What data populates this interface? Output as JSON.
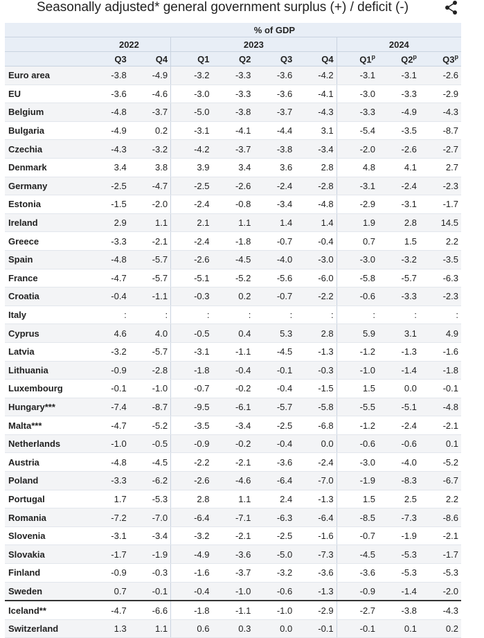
{
  "title": "Seasonally adjusted* general government surplus (+) / deficit (-)",
  "unit_label": "% of GDP",
  "years": [
    {
      "label": "2022",
      "span": 2
    },
    {
      "label": "2023",
      "span": 4
    },
    {
      "label": "2024",
      "span": 3
    }
  ],
  "quarters": [
    "Q3",
    "Q4",
    "Q1",
    "Q2",
    "Q3",
    "Q4",
    "Q1",
    "Q2",
    "Q3"
  ],
  "provisional_marker": "p",
  "icons": {
    "share": "share-icon"
  },
  "chart_data": {
    "type": "table",
    "title": "Seasonally adjusted* general government surplus (+) / deficit (-)",
    "unit": "% of GDP",
    "columns": [
      "2022 Q3",
      "2022 Q4",
      "2023 Q1",
      "2023 Q2",
      "2023 Q3",
      "2023 Q4",
      "2024 Q1p",
      "2024 Q2p",
      "2024 Q3p"
    ],
    "rows": [
      {
        "name": "Euro area",
        "values": [
          "-3.8",
          "-4.9",
          "-3.2",
          "-3.3",
          "-3.6",
          "-4.2",
          "-3.1",
          "-3.1",
          "-2.6"
        ]
      },
      {
        "name": "EU",
        "values": [
          "-3.6",
          "-4.6",
          "-3.0",
          "-3.3",
          "-3.6",
          "-4.1",
          "-3.0",
          "-3.3",
          "-2.9"
        ]
      },
      {
        "name": "Belgium",
        "values": [
          "-4.8",
          "-3.7",
          "-5.0",
          "-3.8",
          "-3.7",
          "-4.3",
          "-3.3",
          "-4.9",
          "-4.3"
        ]
      },
      {
        "name": "Bulgaria",
        "values": [
          "-4.9",
          "0.2",
          "-3.1",
          "-4.1",
          "-4.4",
          "3.1",
          "-5.4",
          "-3.5",
          "-8.7"
        ]
      },
      {
        "name": "Czechia",
        "values": [
          "-4.3",
          "-3.2",
          "-4.2",
          "-3.7",
          "-3.8",
          "-3.4",
          "-2.0",
          "-2.6",
          "-2.7"
        ]
      },
      {
        "name": "Denmark",
        "values": [
          "3.4",
          "3.8",
          "3.9",
          "3.4",
          "3.6",
          "2.8",
          "4.8",
          "4.1",
          "2.7"
        ]
      },
      {
        "name": "Germany",
        "values": [
          "-2.5",
          "-4.7",
          "-2.5",
          "-2.6",
          "-2.4",
          "-2.8",
          "-3.1",
          "-2.4",
          "-2.3"
        ]
      },
      {
        "name": "Estonia",
        "values": [
          "-1.5",
          "-2.0",
          "-2.4",
          "-0.8",
          "-3.4",
          "-4.8",
          "-2.9",
          "-3.1",
          "-1.7"
        ]
      },
      {
        "name": "Ireland",
        "values": [
          "2.9",
          "1.1",
          "2.1",
          "1.1",
          "1.4",
          "1.4",
          "1.9",
          "2.8",
          "14.5"
        ]
      },
      {
        "name": "Greece",
        "values": [
          "-3.3",
          "-2.1",
          "-2.4",
          "-1.8",
          "-0.7",
          "-0.4",
          "0.7",
          "1.5",
          "2.2"
        ]
      },
      {
        "name": "Spain",
        "values": [
          "-4.8",
          "-5.7",
          "-2.6",
          "-4.5",
          "-4.0",
          "-3.0",
          "-3.0",
          "-3.2",
          "-3.5"
        ]
      },
      {
        "name": "France",
        "values": [
          "-4.7",
          "-5.7",
          "-5.1",
          "-5.2",
          "-5.6",
          "-6.0",
          "-5.8",
          "-5.7",
          "-6.3"
        ]
      },
      {
        "name": "Croatia",
        "values": [
          "-0.4",
          "-1.1",
          "-0.3",
          "0.2",
          "-0.7",
          "-2.2",
          "-0.6",
          "-3.3",
          "-2.3"
        ]
      },
      {
        "name": "Italy",
        "values": [
          ":",
          ":",
          ":",
          ":",
          ":",
          ":",
          ":",
          ":",
          ":"
        ]
      },
      {
        "name": "Cyprus",
        "values": [
          "4.6",
          "4.0",
          "-0.5",
          "0.4",
          "5.3",
          "2.8",
          "5.9",
          "3.1",
          "4.9"
        ]
      },
      {
        "name": "Latvia",
        "values": [
          "-3.2",
          "-5.7",
          "-3.1",
          "-1.1",
          "-4.5",
          "-1.3",
          "-1.2",
          "-1.3",
          "-1.6"
        ]
      },
      {
        "name": "Lithuania",
        "values": [
          "-0.9",
          "-2.8",
          "-1.8",
          "-0.4",
          "-0.1",
          "-0.3",
          "-1.0",
          "-1.4",
          "-1.8"
        ]
      },
      {
        "name": "Luxembourg",
        "values": [
          "-0.1",
          "-1.0",
          "-0.7",
          "-0.2",
          "-0.4",
          "-1.5",
          "1.5",
          "0.0",
          "-0.1"
        ]
      },
      {
        "name": "Hungary***",
        "values": [
          "-7.4",
          "-8.7",
          "-9.5",
          "-6.1",
          "-5.7",
          "-5.8",
          "-5.5",
          "-5.1",
          "-4.8"
        ]
      },
      {
        "name": "Malta***",
        "values": [
          "-4.7",
          "-5.2",
          "-3.5",
          "-3.4",
          "-2.5",
          "-6.8",
          "-1.2",
          "-2.4",
          "-2.1"
        ]
      },
      {
        "name": "Netherlands",
        "values": [
          "-1.0",
          "-0.5",
          "-0.9",
          "-0.2",
          "-0.4",
          "0.0",
          "-0.6",
          "-0.6",
          "0.1"
        ]
      },
      {
        "name": "Austria",
        "values": [
          "-4.8",
          "-4.5",
          "-2.2",
          "-2.1",
          "-3.6",
          "-2.4",
          "-3.0",
          "-4.0",
          "-5.2"
        ]
      },
      {
        "name": "Poland",
        "values": [
          "-3.3",
          "-6.2",
          "-2.6",
          "-4.6",
          "-6.4",
          "-7.0",
          "-1.9",
          "-8.3",
          "-6.7"
        ]
      },
      {
        "name": "Portugal",
        "values": [
          "1.7",
          "-5.3",
          "2.8",
          "1.1",
          "2.4",
          "-1.3",
          "1.5",
          "2.5",
          "2.2"
        ]
      },
      {
        "name": "Romania",
        "values": [
          "-7.2",
          "-7.0",
          "-6.4",
          "-7.1",
          "-6.3",
          "-6.4",
          "-8.5",
          "-7.3",
          "-8.6"
        ]
      },
      {
        "name": "Slovenia",
        "values": [
          "-3.1",
          "-3.4",
          "-3.2",
          "-2.1",
          "-2.5",
          "-1.6",
          "-0.7",
          "-1.9",
          "-2.1"
        ]
      },
      {
        "name": "Slovakia",
        "values": [
          "-1.7",
          "-1.9",
          "-4.9",
          "-3.6",
          "-5.0",
          "-7.3",
          "-4.5",
          "-5.3",
          "-1.7"
        ]
      },
      {
        "name": "Finland",
        "values": [
          "-0.9",
          "-0.3",
          "-1.6",
          "-3.7",
          "-3.2",
          "-3.6",
          "-3.6",
          "-5.3",
          "-5.3"
        ]
      },
      {
        "name": "Sweden",
        "values": [
          "0.7",
          "-0.1",
          "-0.4",
          "-1.0",
          "-0.6",
          "-1.3",
          "-0.9",
          "-1.4",
          "-2.0"
        ]
      },
      {
        "name": "Iceland**",
        "values": [
          "-4.7",
          "-6.6",
          "-1.8",
          "-1.1",
          "-1.0",
          "-2.9",
          "-2.7",
          "-3.8",
          "-4.3"
        ]
      },
      {
        "name": "Switzerland",
        "values": [
          "1.3",
          "1.1",
          "0.6",
          "0.3",
          "0.0",
          "-0.1",
          "-0.1",
          "0.1",
          "0.2"
        ]
      }
    ]
  },
  "colors": {
    "header_bg": "#e8eef6",
    "alt_row_bg": "#f3f4f6",
    "text": "#222222"
  }
}
